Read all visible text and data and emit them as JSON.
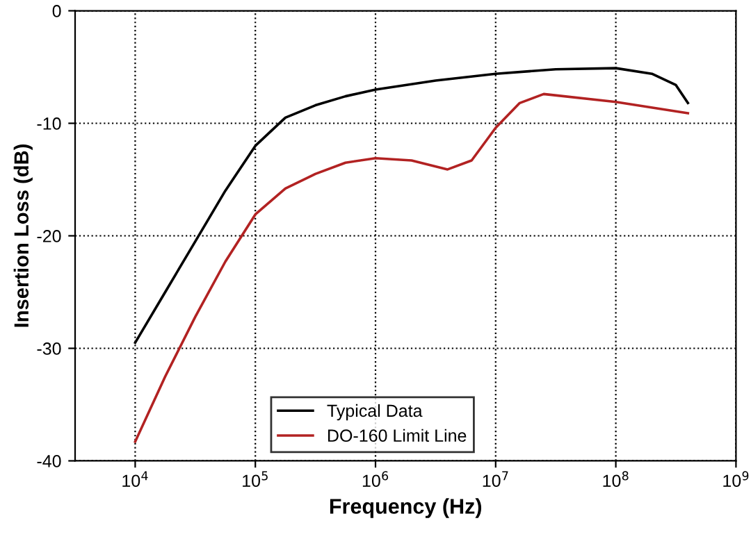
{
  "chart_data": {
    "type": "line",
    "xlabel": "Frequency (Hz)",
    "ylabel": "Insertion Loss (dB)",
    "log": "x",
    "xlim": [
      3162,
      1000000000
    ],
    "ylim": [
      -40,
      0
    ],
    "xticks": [
      {
        "value": 10000,
        "label": "10$^{4}$"
      },
      {
        "value": 100000,
        "label": "10$^{5}$"
      },
      {
        "value": 1000000,
        "label": "10$^{6}$"
      },
      {
        "value": 10000000,
        "label": "10$^{7}$"
      },
      {
        "value": 100000000,
        "label": "10$^{8}$"
      },
      {
        "value": 1000000000,
        "label": "10$^{9}$"
      }
    ],
    "yticks": [
      0,
      -10,
      -20,
      -30,
      -40
    ],
    "grid": true,
    "legend": "bottom",
    "line_style": "solid",
    "marker": "none",
    "series": [
      {
        "name": "Typical Data",
        "color": "#000000",
        "x": [
          10000,
          17783,
          31623,
          56234,
          100000,
          177828,
          316228,
          562341,
          1000000,
          3162278,
          10000000,
          31622777,
          100000000,
          199526231,
          316227766,
          398107171
        ],
        "values": [
          -29.5,
          -25,
          -20.5,
          -16,
          -12,
          -9.5,
          -8.4,
          -7.6,
          -7,
          -6.2,
          -5.6,
          -5.2,
          -5.1,
          -5.6,
          -6.6,
          -8.2
        ]
      },
      {
        "name": "DO-160 Limit Line",
        "color": "#b22222",
        "x": [
          10000,
          17783,
          31623,
          56234,
          100000,
          177828,
          316228,
          562341,
          1000000,
          1995262,
          3981072,
          6309573,
          10000000,
          15848932,
          25118864,
          100000000,
          398107171
        ],
        "values": [
          -38.3,
          -32.5,
          -27.2,
          -22.3,
          -18.1,
          -15.8,
          -14.5,
          -13.5,
          -13.1,
          -13.3,
          -14.1,
          -13.3,
          -10.4,
          -8.2,
          -7.4,
          -8.1,
          -9.1
        ]
      }
    ]
  }
}
